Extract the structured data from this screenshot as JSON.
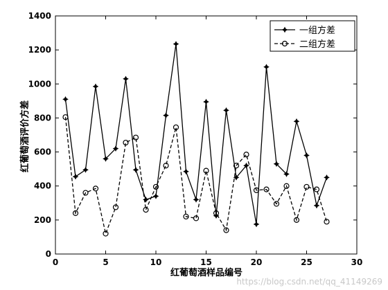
{
  "chart_data": {
    "type": "line",
    "title": "",
    "xlabel": "红葡萄酒样品编号",
    "ylabel": "红葡萄酒评价方差",
    "xlim": [
      0,
      30
    ],
    "ylim": [
      0,
      1400
    ],
    "xticks": [
      0,
      5,
      10,
      15,
      20,
      25,
      30
    ],
    "yticks": [
      0,
      200,
      400,
      600,
      800,
      1000,
      1200,
      1400
    ],
    "grid": false,
    "legend_position": "top-right",
    "x": [
      1,
      2,
      3,
      4,
      5,
      6,
      7,
      8,
      9,
      10,
      11,
      12,
      13,
      14,
      15,
      16,
      17,
      18,
      19,
      20,
      21,
      22,
      23,
      24,
      25,
      26,
      27
    ],
    "series": [
      {
        "name": "一组方差",
        "line_style": "solid",
        "marker": "star",
        "color": "#000000",
        "values": [
          910,
          455,
          495,
          985,
          560,
          620,
          1030,
          495,
          320,
          340,
          815,
          1235,
          485,
          320,
          895,
          225,
          845,
          450,
          520,
          175,
          1100,
          530,
          470,
          780,
          580,
          285,
          450
        ]
      },
      {
        "name": "二组方差",
        "line_style": "dashed",
        "marker": "circle",
        "color": "#000000",
        "values": [
          805,
          240,
          360,
          385,
          120,
          275,
          655,
          685,
          260,
          395,
          520,
          745,
          220,
          210,
          490,
          240,
          140,
          520,
          585,
          375,
          380,
          295,
          400,
          200,
          395,
          380,
          190
        ]
      }
    ]
  },
  "watermark": "https://blog.csdn.net/qq_41149269"
}
